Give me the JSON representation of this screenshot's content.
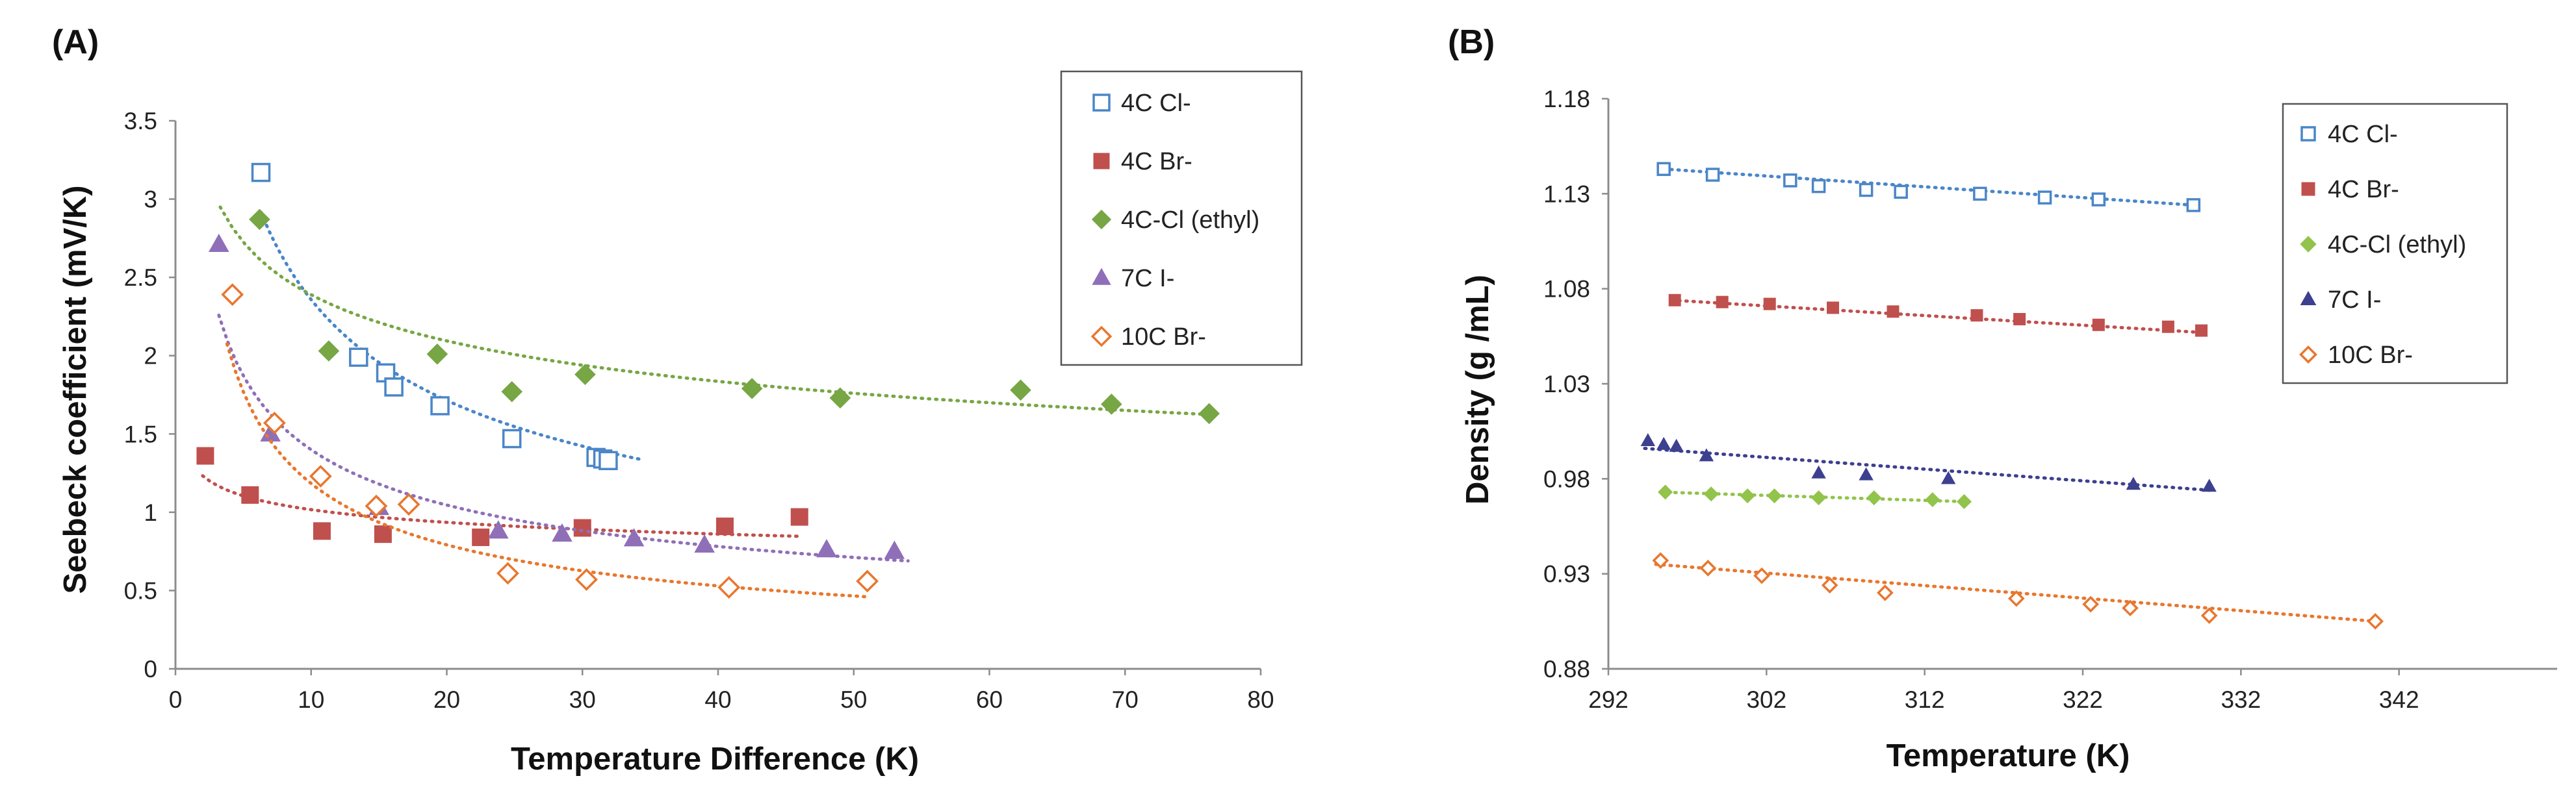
{
  "chart_data": [
    {
      "panel": "(A)",
      "type": "scatter",
      "title": "",
      "xlabel": "Temperature Difference (K)",
      "ylabel": "Seebeck coefficient (mV/K)",
      "xlim": [
        0,
        80
      ],
      "ylim": [
        0,
        3.5
      ],
      "xticks": [
        0,
        10,
        20,
        30,
        40,
        50,
        60,
        70,
        80
      ],
      "yticks": [
        0,
        0.5,
        1,
        1.5,
        2,
        2.5,
        3,
        3.5
      ],
      "ytick_labels": [
        "0",
        "0.5",
        "1",
        "1.5",
        "2",
        "2.5",
        "3",
        "3.5"
      ],
      "legend_position": "top-right",
      "series": [
        {
          "name": "4C Cl-",
          "color": "#4a86c8",
          "marker": "square-open",
          "x": [
            6.3,
            13.5,
            15.5,
            16.1,
            19.5,
            24.8,
            31,
            31.5,
            31.9
          ],
          "y": [
            3.17,
            1.99,
            1.89,
            1.8,
            1.68,
            1.47,
            1.35,
            1.34,
            1.33
          ],
          "trend": {
            "a": 6.8,
            "b": -0.46,
            "x_from": 6.3,
            "x_to": 34.5
          }
        },
        {
          "name": "4C Br-",
          "color": "#c0504d",
          "marker": "square",
          "x": [
            2.2,
            5.5,
            10.8,
            15.3,
            22.5,
            30,
            40.5,
            46
          ],
          "y": [
            1.36,
            1.11,
            0.88,
            0.86,
            0.84,
            0.9,
            0.91,
            0.97
          ],
          "trend": {
            "a": 1.34,
            "b": -0.12,
            "x_from": 2,
            "x_to": 46
          }
        },
        {
          "name": "4C-Cl (ethyl)",
          "color": "#77a644",
          "marker": "diamond",
          "x": [
            6.2,
            11.3,
            19.3,
            24.8,
            30.2,
            42.5,
            49,
            62.3,
            69,
            76.2
          ],
          "y": [
            2.87,
            2.03,
            2.01,
            1.77,
            1.88,
            1.79,
            1.73,
            1.78,
            1.69,
            1.63
          ],
          "trend": {
            "a": 3.7,
            "b": -0.19,
            "x_from": 3.3,
            "x_to": 76.5
          }
        },
        {
          "name": "7C I-",
          "color": "#8f6fb8",
          "marker": "triangle",
          "x": [
            3.2,
            7,
            15,
            23.8,
            28.5,
            33.8,
            39,
            48,
            53
          ],
          "y": [
            2.71,
            1.5,
            1.03,
            0.88,
            0.86,
            0.83,
            0.79,
            0.76,
            0.75
          ],
          "trend": {
            "a": 3.68,
            "b": -0.42,
            "x_from": 3.2,
            "x_to": 54
          }
        },
        {
          "name": "10C Br-",
          "color": "#e8772e",
          "marker": "diamond-open",
          "x": [
            4.2,
            7.3,
            10.7,
            14.8,
            17.2,
            24.5,
            30.3,
            40.8,
            51
          ],
          "y": [
            2.39,
            1.57,
            1.23,
            1.04,
            1.05,
            0.61,
            0.57,
            0.52,
            0.56
          ],
          "trend": {
            "a": 4.5,
            "b": -0.58,
            "x_from": 3.8,
            "x_to": 51
          }
        }
      ]
    },
    {
      "panel": "(B)",
      "type": "scatter",
      "title": "",
      "xlabel": "Temperature (K)",
      "ylabel": "Density (g /mL)",
      "xlim": [
        292,
        352
      ],
      "ylim": [
        0.88,
        1.18
      ],
      "xticks": [
        292,
        302,
        312,
        322,
        332,
        342
      ],
      "yticks": [
        0.88,
        0.93,
        0.98,
        1.03,
        1.08,
        1.13,
        1.18
      ],
      "ytick_labels": [
        "0.88",
        "0.93",
        "0.98",
        "1.03",
        "1.08",
        "1.13",
        "1.18"
      ],
      "legend_position": "top-right",
      "series": [
        {
          "name": "4C Cl-",
          "color": "#4a86c8",
          "marker": "square-open",
          "x": [
            295.5,
            298.6,
            303.5,
            305.3,
            308.3,
            310.5,
            315.5,
            319.6,
            323,
            329
          ],
          "y": [
            1.143,
            1.14,
            1.137,
            1.134,
            1.132,
            1.131,
            1.13,
            1.128,
            1.127,
            1.124
          ],
          "trend": {
            "x_from": 295.5,
            "x_to": 329,
            "y_from": 1.143,
            "y_to": 1.124
          }
        },
        {
          "name": "4C Br-",
          "color": "#c0504d",
          "marker": "square",
          "x": [
            296.2,
            299.2,
            302.2,
            306.2,
            310,
            315.3,
            318,
            323,
            327.4,
            329.5
          ],
          "y": [
            1.074,
            1.073,
            1.072,
            1.07,
            1.068,
            1.066,
            1.064,
            1.061,
            1.06,
            1.058
          ],
          "trend": {
            "x_from": 296,
            "x_to": 329.5,
            "y_from": 1.074,
            "y_to": 1.057
          }
        },
        {
          "name": "4C-Cl (ethyl)",
          "color": "#92c34b",
          "marker": "diamond",
          "x": [
            295.6,
            298.5,
            300.8,
            302.5,
            305.3,
            308.8,
            312.5,
            314.5
          ],
          "y": [
            0.973,
            0.972,
            0.971,
            0.971,
            0.97,
            0.97,
            0.969,
            0.968
          ],
          "trend": {
            "x_from": 295.3,
            "x_to": 314.5,
            "y_from": 0.973,
            "y_to": 0.968
          }
        },
        {
          "name": "7C I-",
          "color": "#3d3f8f",
          "marker": "triangle",
          "x": [
            294.5,
            295.5,
            296.3,
            298.2,
            305.3,
            308.3,
            313.5,
            325.2,
            330
          ],
          "y": [
            1.0,
            0.998,
            0.997,
            0.992,
            0.983,
            0.982,
            0.98,
            0.977,
            0.976
          ],
          "trend": {
            "x_from": 294.3,
            "x_to": 330,
            "y_from": 0.996,
            "y_to": 0.974
          }
        },
        {
          "name": "10C Br-",
          "color": "#e8772e",
          "marker": "diamond-open",
          "x": [
            295.3,
            298.3,
            301.7,
            306,
            309.5,
            317.8,
            322.5,
            325,
            330,
            340.5
          ],
          "y": [
            0.937,
            0.933,
            0.929,
            0.924,
            0.92,
            0.917,
            0.914,
            0.912,
            0.908,
            0.905
          ],
          "trend": {
            "x_from": 295,
            "x_to": 340.5,
            "y_from": 0.935,
            "y_to": 0.905
          }
        }
      ]
    }
  ]
}
